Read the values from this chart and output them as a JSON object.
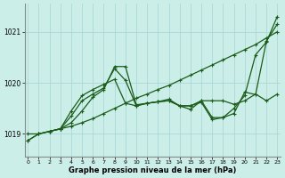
{
  "title": "Graphe pression niveau de la mer (hPa)",
  "bg_color": "#cceee8",
  "grid_color": "#aad8d8",
  "line_color": "#1a5c1a",
  "xlim": [
    -0.3,
    23.3
  ],
  "ylim": [
    1018.55,
    1021.55
  ],
  "yticks": [
    1019,
    1020,
    1021
  ],
  "xticks": [
    0,
    1,
    2,
    3,
    4,
    5,
    6,
    7,
    8,
    9,
    10,
    11,
    12,
    13,
    14,
    15,
    16,
    17,
    18,
    19,
    20,
    21,
    22,
    23
  ],
  "lineA_x": [
    0,
    1,
    2,
    3,
    4,
    5,
    6,
    7,
    8,
    9,
    10,
    11,
    12,
    13,
    14,
    15,
    16,
    17,
    18,
    19,
    20,
    21,
    22,
    23
  ],
  "lineA_y": [
    1019.0,
    1019.0,
    1019.05,
    1019.1,
    1019.15,
    1019.22,
    1019.3,
    1019.4,
    1019.5,
    1019.6,
    1019.7,
    1019.78,
    1019.87,
    1019.95,
    1020.05,
    1020.15,
    1020.25,
    1020.35,
    1020.45,
    1020.55,
    1020.65,
    1020.75,
    1020.88,
    1021.0
  ],
  "lineB_x": [
    0,
    1,
    2,
    3,
    4,
    5,
    6,
    7,
    8,
    9,
    10,
    11,
    12,
    13,
    14,
    15,
    16,
    17,
    18,
    19,
    20,
    21,
    22,
    23
  ],
  "lineB_y": [
    1018.87,
    1019.0,
    1019.05,
    1019.1,
    1019.45,
    1019.75,
    1019.87,
    1019.97,
    1020.07,
    1019.6,
    1019.55,
    1019.6,
    1019.63,
    1019.65,
    1019.55,
    1019.48,
    1019.65,
    1019.32,
    1019.32,
    1019.5,
    1019.75,
    1020.55,
    1020.8,
    1021.3
  ],
  "lineC_x": [
    0,
    1,
    2,
    3,
    4,
    5,
    6,
    7,
    8,
    9,
    10,
    11,
    12,
    13,
    14,
    15,
    16,
    17,
    18,
    19,
    20,
    21,
    22,
    23
  ],
  "lineC_y": [
    1018.87,
    1019.0,
    1019.05,
    1019.1,
    1019.35,
    1019.65,
    1019.78,
    1019.9,
    1020.28,
    1020.05,
    1019.55,
    1019.6,
    1019.63,
    1019.65,
    1019.55,
    1019.55,
    1019.62,
    1019.28,
    1019.32,
    1019.4,
    1019.82,
    1019.77,
    1020.82,
    1021.15
  ],
  "lineD_x": [
    2,
    3,
    4,
    5,
    6,
    7,
    8,
    9,
    10,
    11,
    12,
    13,
    14,
    15,
    16,
    17,
    18,
    19,
    20,
    21,
    22,
    23
  ],
  "lineD_y": [
    1019.05,
    1019.1,
    1019.22,
    1019.45,
    1019.72,
    1019.87,
    1020.32,
    1020.32,
    1019.57,
    1019.6,
    1019.63,
    1019.68,
    1019.55,
    1019.55,
    1019.65,
    1019.65,
    1019.65,
    1019.58,
    1019.65,
    1019.78,
    1019.65,
    1019.78
  ]
}
